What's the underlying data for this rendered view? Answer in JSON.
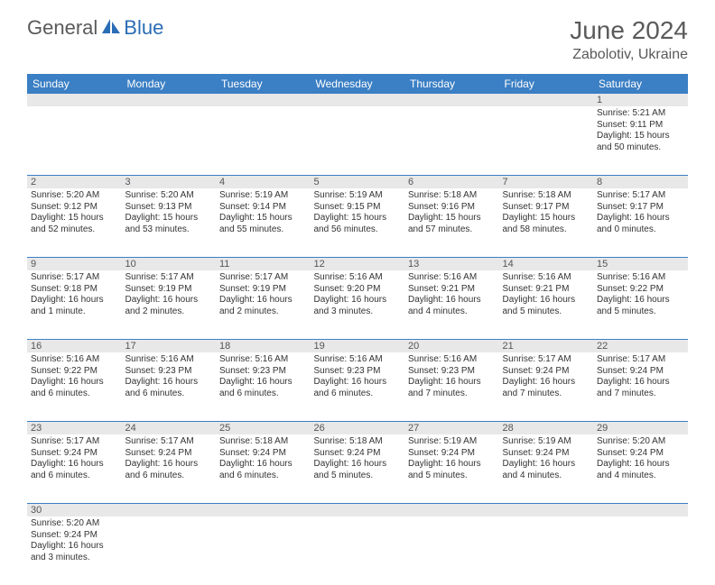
{
  "logo": {
    "text1": "General",
    "text2": "Blue"
  },
  "title": "June 2024",
  "location": "Zabolotiv, Ukraine",
  "colors": {
    "header_bg": "#3b7fc4",
    "header_text": "#ffffff",
    "daynum_bg": "#e8e8e8",
    "row_border": "#3b7fc4",
    "logo_gray": "#5a5a5a",
    "logo_blue": "#2a6db5"
  },
  "weekdays": [
    "Sunday",
    "Monday",
    "Tuesday",
    "Wednesday",
    "Thursday",
    "Friday",
    "Saturday"
  ],
  "weeks": [
    [
      null,
      null,
      null,
      null,
      null,
      null,
      {
        "n": "1",
        "sr": "Sunrise: 5:21 AM",
        "ss": "Sunset: 9:11 PM",
        "dl": "Daylight: 15 hours and 50 minutes."
      }
    ],
    [
      {
        "n": "2",
        "sr": "Sunrise: 5:20 AM",
        "ss": "Sunset: 9:12 PM",
        "dl": "Daylight: 15 hours and 52 minutes."
      },
      {
        "n": "3",
        "sr": "Sunrise: 5:20 AM",
        "ss": "Sunset: 9:13 PM",
        "dl": "Daylight: 15 hours and 53 minutes."
      },
      {
        "n": "4",
        "sr": "Sunrise: 5:19 AM",
        "ss": "Sunset: 9:14 PM",
        "dl": "Daylight: 15 hours and 55 minutes."
      },
      {
        "n": "5",
        "sr": "Sunrise: 5:19 AM",
        "ss": "Sunset: 9:15 PM",
        "dl": "Daylight: 15 hours and 56 minutes."
      },
      {
        "n": "6",
        "sr": "Sunrise: 5:18 AM",
        "ss": "Sunset: 9:16 PM",
        "dl": "Daylight: 15 hours and 57 minutes."
      },
      {
        "n": "7",
        "sr": "Sunrise: 5:18 AM",
        "ss": "Sunset: 9:17 PM",
        "dl": "Daylight: 15 hours and 58 minutes."
      },
      {
        "n": "8",
        "sr": "Sunrise: 5:17 AM",
        "ss": "Sunset: 9:17 PM",
        "dl": "Daylight: 16 hours and 0 minutes."
      }
    ],
    [
      {
        "n": "9",
        "sr": "Sunrise: 5:17 AM",
        "ss": "Sunset: 9:18 PM",
        "dl": "Daylight: 16 hours and 1 minute."
      },
      {
        "n": "10",
        "sr": "Sunrise: 5:17 AM",
        "ss": "Sunset: 9:19 PM",
        "dl": "Daylight: 16 hours and 2 minutes."
      },
      {
        "n": "11",
        "sr": "Sunrise: 5:17 AM",
        "ss": "Sunset: 9:19 PM",
        "dl": "Daylight: 16 hours and 2 minutes."
      },
      {
        "n": "12",
        "sr": "Sunrise: 5:16 AM",
        "ss": "Sunset: 9:20 PM",
        "dl": "Daylight: 16 hours and 3 minutes."
      },
      {
        "n": "13",
        "sr": "Sunrise: 5:16 AM",
        "ss": "Sunset: 9:21 PM",
        "dl": "Daylight: 16 hours and 4 minutes."
      },
      {
        "n": "14",
        "sr": "Sunrise: 5:16 AM",
        "ss": "Sunset: 9:21 PM",
        "dl": "Daylight: 16 hours and 5 minutes."
      },
      {
        "n": "15",
        "sr": "Sunrise: 5:16 AM",
        "ss": "Sunset: 9:22 PM",
        "dl": "Daylight: 16 hours and 5 minutes."
      }
    ],
    [
      {
        "n": "16",
        "sr": "Sunrise: 5:16 AM",
        "ss": "Sunset: 9:22 PM",
        "dl": "Daylight: 16 hours and 6 minutes."
      },
      {
        "n": "17",
        "sr": "Sunrise: 5:16 AM",
        "ss": "Sunset: 9:23 PM",
        "dl": "Daylight: 16 hours and 6 minutes."
      },
      {
        "n": "18",
        "sr": "Sunrise: 5:16 AM",
        "ss": "Sunset: 9:23 PM",
        "dl": "Daylight: 16 hours and 6 minutes."
      },
      {
        "n": "19",
        "sr": "Sunrise: 5:16 AM",
        "ss": "Sunset: 9:23 PM",
        "dl": "Daylight: 16 hours and 6 minutes."
      },
      {
        "n": "20",
        "sr": "Sunrise: 5:16 AM",
        "ss": "Sunset: 9:23 PM",
        "dl": "Daylight: 16 hours and 7 minutes."
      },
      {
        "n": "21",
        "sr": "Sunrise: 5:17 AM",
        "ss": "Sunset: 9:24 PM",
        "dl": "Daylight: 16 hours and 7 minutes."
      },
      {
        "n": "22",
        "sr": "Sunrise: 5:17 AM",
        "ss": "Sunset: 9:24 PM",
        "dl": "Daylight: 16 hours and 7 minutes."
      }
    ],
    [
      {
        "n": "23",
        "sr": "Sunrise: 5:17 AM",
        "ss": "Sunset: 9:24 PM",
        "dl": "Daylight: 16 hours and 6 minutes."
      },
      {
        "n": "24",
        "sr": "Sunrise: 5:17 AM",
        "ss": "Sunset: 9:24 PM",
        "dl": "Daylight: 16 hours and 6 minutes."
      },
      {
        "n": "25",
        "sr": "Sunrise: 5:18 AM",
        "ss": "Sunset: 9:24 PM",
        "dl": "Daylight: 16 hours and 6 minutes."
      },
      {
        "n": "26",
        "sr": "Sunrise: 5:18 AM",
        "ss": "Sunset: 9:24 PM",
        "dl": "Daylight: 16 hours and 5 minutes."
      },
      {
        "n": "27",
        "sr": "Sunrise: 5:19 AM",
        "ss": "Sunset: 9:24 PM",
        "dl": "Daylight: 16 hours and 5 minutes."
      },
      {
        "n": "28",
        "sr": "Sunrise: 5:19 AM",
        "ss": "Sunset: 9:24 PM",
        "dl": "Daylight: 16 hours and 4 minutes."
      },
      {
        "n": "29",
        "sr": "Sunrise: 5:20 AM",
        "ss": "Sunset: 9:24 PM",
        "dl": "Daylight: 16 hours and 4 minutes."
      }
    ],
    [
      {
        "n": "30",
        "sr": "Sunrise: 5:20 AM",
        "ss": "Sunset: 9:24 PM",
        "dl": "Daylight: 16 hours and 3 minutes."
      },
      null,
      null,
      null,
      null,
      null,
      null
    ]
  ]
}
